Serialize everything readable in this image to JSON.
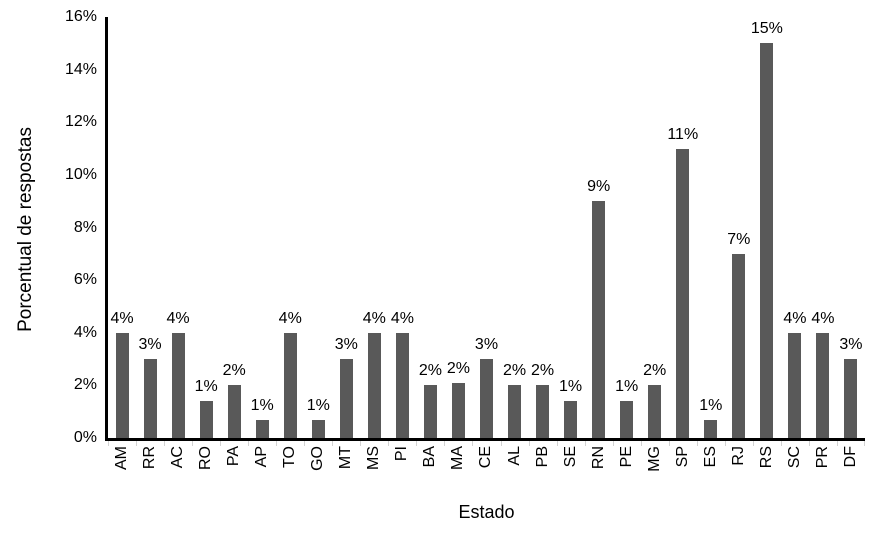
{
  "chart_data": {
    "type": "bar",
    "title": "",
    "xlabel": "Estado",
    "ylabel": "Porcentual de respostas",
    "categories": [
      "AM",
      "RR",
      "AC",
      "RO",
      "PA",
      "AP",
      "TO",
      "GO",
      "MT",
      "MS",
      "PI",
      "BA",
      "MA",
      "CE",
      "AL",
      "PB",
      "SE",
      "RN",
      "PE",
      "MG",
      "SP",
      "ES",
      "RJ",
      "RS",
      "SC",
      "PR",
      "DF"
    ],
    "values": [
      4,
      3,
      4,
      1.4,
      2,
      0.7,
      4,
      0.7,
      3,
      4,
      4,
      2,
      2.1,
      3,
      2,
      2,
      1.4,
      9,
      1.4,
      2,
      11,
      0.7,
      7,
      15,
      4,
      4,
      3
    ],
    "labels": [
      "4%",
      "3%",
      "4%",
      "1%",
      "2%",
      "1%",
      "4%",
      "1%",
      "3%",
      "4%",
      "4%",
      "2%",
      "2%",
      "3%",
      "2%",
      "2%",
      "1%",
      "9%",
      "1%",
      "2%",
      "11%",
      "1%",
      "7%",
      "15%",
      "4%",
      "4%",
      "3%"
    ],
    "ylim": [
      0,
      16
    ],
    "yticks": [
      "0%",
      "2%",
      "4%",
      "6%",
      "8%",
      "10%",
      "12%",
      "14%",
      "16%"
    ],
    "grid": false,
    "legend": false,
    "bar_color": "#595959",
    "axis_color": "#000000",
    "tick_color": "#d2d2d2",
    "text_color": "#000000"
  }
}
